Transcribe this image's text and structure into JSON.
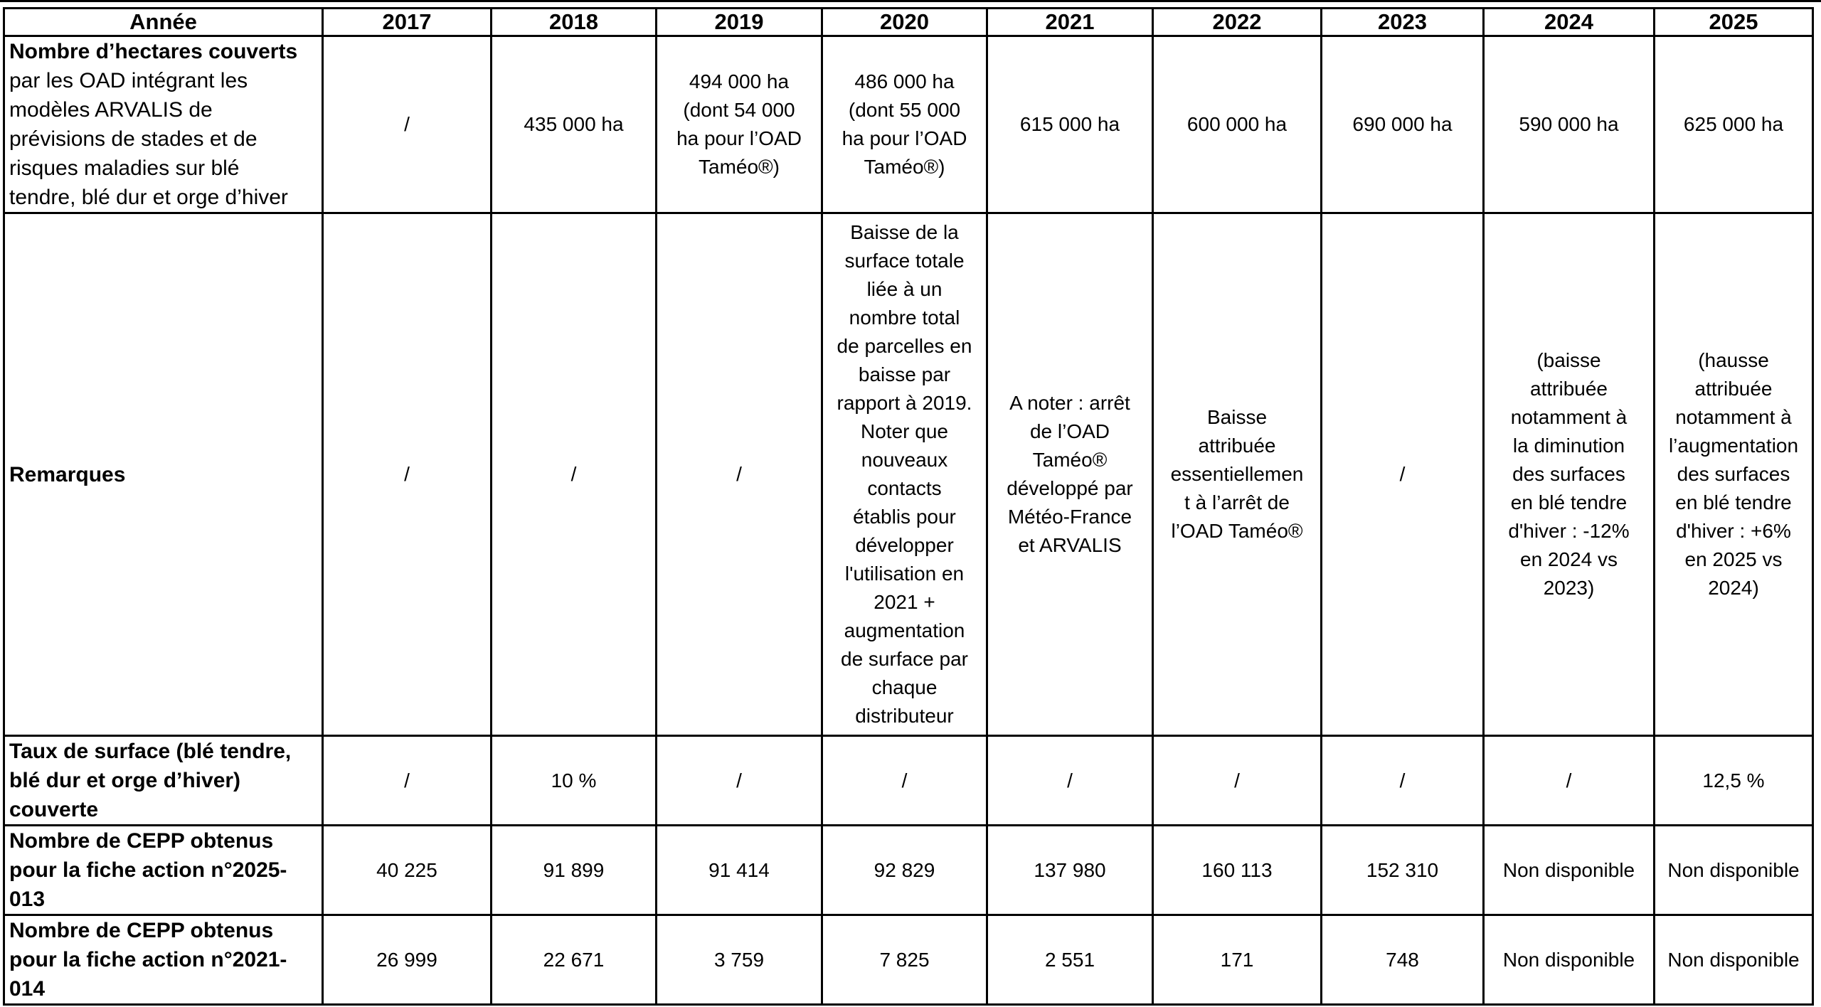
{
  "table": {
    "header": {
      "label": "Année",
      "years": [
        "2017",
        "2018",
        "2019",
        "2020",
        "2021",
        "2022",
        "2023",
        "2024",
        "2025"
      ]
    },
    "rows": [
      {
        "key": "hectares",
        "label_bold": "Nombre d’hectares couverts",
        "label_rest": "\npar les OAD intégrant les\nmodèles ARVALIS de\nprévisions de stades et de\nrisques maladies sur blé\ntendre, blé dur et orge d’hiver",
        "values": [
          "/",
          "435 000 ha",
          "494 000 ha\n(dont 54 000\nha pour l’OAD\nTaméo®)",
          "486 000 ha\n(dont 55 000\nha pour l’OAD\nTaméo®)",
          "615 000 ha",
          "600 000 ha",
          "690 000 ha",
          "590 000 ha",
          "625 000 ha"
        ]
      },
      {
        "key": "remarques",
        "label_bold": "Remarques",
        "label_rest": "",
        "values": [
          "/",
          "/",
          "/",
          "Baisse de la\nsurface totale\nliée à un\nnombre total\nde parcelles en\nbaisse par\nrapport à 2019.\nNoter que\nnouveaux\ncontacts\nétablis pour\ndévelopper\nl'utilisation en\n2021 +\naugmentation\nde surface par\nchaque\ndistributeur",
          "A noter : arrêt\nde l’OAD\nTaméo®\ndéveloppé par\nMétéo-France\net ARVALIS",
          "Baisse\nattribuée\nessentiellemen\nt à l’arrêt de\nl’OAD Taméo®",
          "/",
          "(baisse\nattribuée\nnotamment à\nla diminution\ndes surfaces\nen blé tendre\nd'hiver : -12%\nen 2024 vs\n2023)",
          "(hausse\nattribuée\nnotamment à\nl’augmentation\ndes surfaces\nen blé tendre\nd'hiver : +6%\nen 2025 vs\n2024)"
        ]
      },
      {
        "key": "taux",
        "label_bold": "Taux de surface (blé tendre,\nblé dur et orge d’hiver)\ncouverte",
        "label_rest": "",
        "values": [
          "/",
          "10 %",
          "/",
          "/",
          "/",
          "/",
          "/",
          "/",
          "12,5 %"
        ]
      },
      {
        "key": "cepp-2025-013",
        "label_bold": "Nombre de CEPP obtenus\npour la fiche action n°2025-\n013",
        "label_rest": "",
        "values": [
          "40 225",
          "91 899",
          "91 414",
          "92 829",
          "137 980",
          "160 113",
          "152 310",
          "Non disponible",
          "Non disponible"
        ]
      },
      {
        "key": "cepp-2021-014",
        "label_bold": "Nombre de CEPP obtenus\npour la fiche action n°2021-\n014",
        "label_rest": "",
        "values": [
          "26 999",
          "22 671",
          "3 759",
          "7 825",
          "2 551",
          "171",
          "748",
          "Non disponible",
          "Non disponible"
        ]
      }
    ]
  }
}
